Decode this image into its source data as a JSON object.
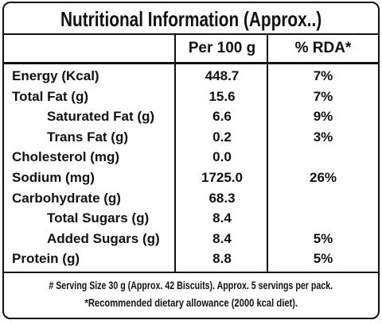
{
  "title": "Nutritional Information (Approx..)",
  "table": {
    "header": [
      "Per 100 g",
      "% RDA*"
    ],
    "rows": [
      [
        "Energy (Kcal)",
        "448.7",
        "7%"
      ],
      [
        "Total Fat (g)",
        "15.6",
        "7%"
      ],
      [
        "Saturated Fat (g)",
        "6.6",
        "9%"
      ],
      [
        "Trans Fat (g)",
        "0.2",
        "3%"
      ],
      [
        "Cholesterol (mg)",
        "0.0",
        null
      ],
      [
        "Sodium (mg)",
        "1725.0",
        "26%"
      ],
      [
        "Carbohydrate (g)",
        "68.3",
        null
      ],
      [
        "Total Sugars (g)",
        "8.4",
        null
      ],
      [
        "Added Sugars (g)",
        "8.4",
        "5%"
      ],
      [
        "Protein (g)",
        "8.8",
        "5%"
      ]
    ]
  },
  "footer": [
    "# Serving Size 30 g (Approx. 42 Biscuits). Approx. 5 servings per pack.",
    "*Recommended dietary allowance (2000 kcal diet)."
  ]
}
